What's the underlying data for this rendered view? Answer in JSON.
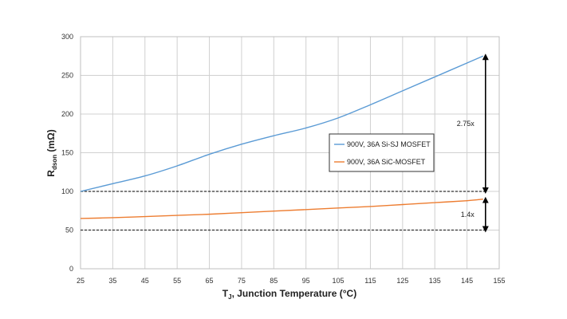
{
  "chart_data": {
    "type": "line",
    "xlabel_main": "T",
    "xlabel_sub": "J",
    "xlabel_rest": ", Junction Temperature (°C)",
    "ylabel_main": "R",
    "ylabel_sub": "dson",
    "ylabel_rest": " (mΩ)",
    "xlim": [
      25,
      155
    ],
    "ylim": [
      0,
      300
    ],
    "x_ticks": [
      25,
      35,
      45,
      55,
      65,
      75,
      85,
      95,
      105,
      115,
      125,
      135,
      145,
      155
    ],
    "y_ticks": [
      0,
      50,
      100,
      150,
      200,
      250,
      300
    ],
    "grid": true,
    "legend_position": "middle-right",
    "series": [
      {
        "name": "900V, 36A Si-SJ MOSFET",
        "color": "#5b9bd5",
        "x": [
          25,
          35,
          45,
          55,
          65,
          75,
          85,
          95,
          105,
          115,
          125,
          135,
          145,
          150
        ],
        "y": [
          100,
          110,
          120,
          133,
          148,
          161,
          172,
          182,
          195,
          212,
          230,
          248,
          266,
          275
        ]
      },
      {
        "name": "900V, 36A SiC-MOSFET",
        "color": "#ed7d31",
        "x": [
          25,
          35,
          45,
          55,
          65,
          75,
          85,
          95,
          105,
          115,
          125,
          135,
          145,
          150
        ],
        "y": [
          65,
          66,
          67.5,
          69,
          70.5,
          72.5,
          74.5,
          76.5,
          78.5,
          80.5,
          83,
          85.5,
          88,
          90
        ]
      }
    ],
    "reference_lines": [
      {
        "y": 100,
        "style": "dashed",
        "color": "#333333"
      },
      {
        "y": 50,
        "style": "dashed",
        "color": "#333333"
      }
    ],
    "annotations": [
      {
        "label": "2.75x",
        "x": 150,
        "y_from": 100,
        "y_to": 275
      },
      {
        "label": "1.4x",
        "x": 150,
        "y_from": 50,
        "y_to": 90
      }
    ]
  }
}
